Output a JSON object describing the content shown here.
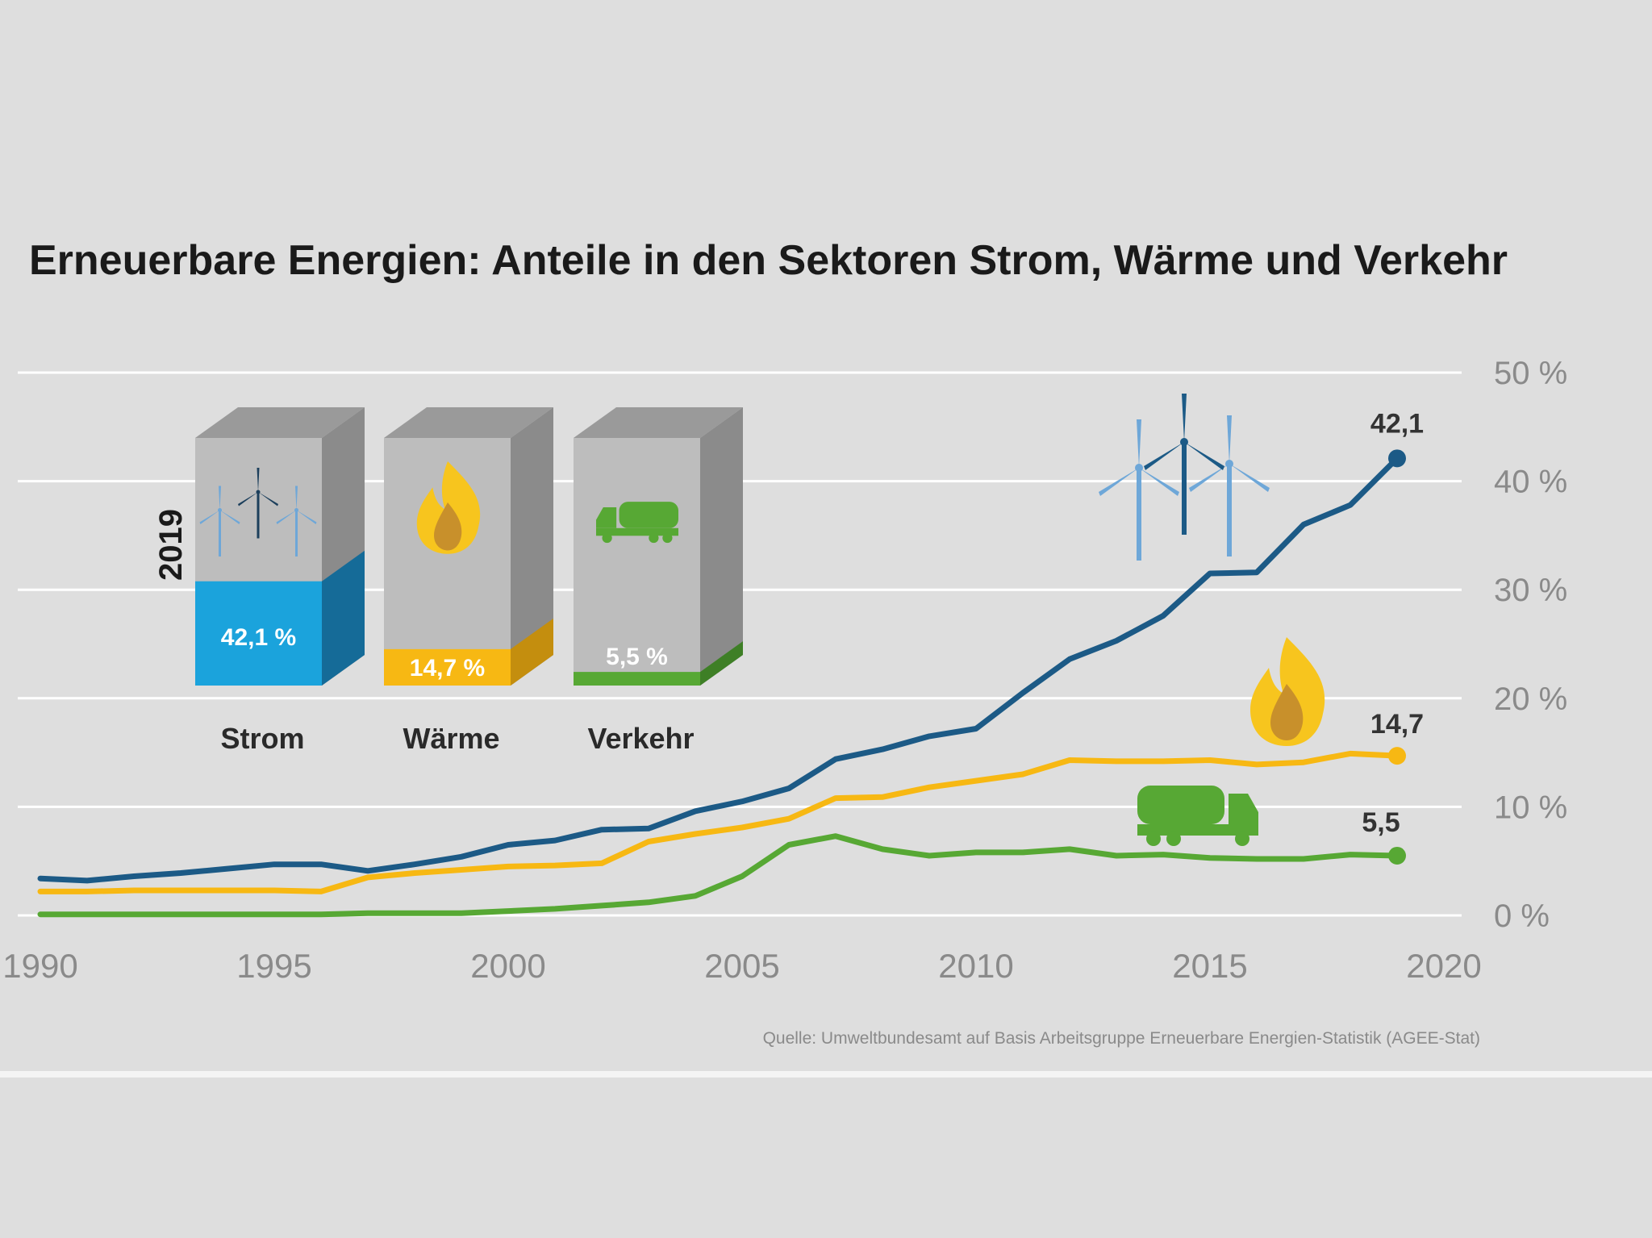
{
  "chart_data": {
    "type": "line",
    "title": "Erneuerbare Energien: Anteile in den Sektoren Strom, Wärme und Verkehr",
    "source": "Quelle: Umweltbundesamt auf Basis Arbeitsgruppe Erneuerbare Energien-Statistik (AGEE-Stat)",
    "x_ticks": [
      "1990",
      "1995",
      "2000",
      "2005",
      "2010",
      "2015",
      "2020"
    ],
    "y_ticks": [
      "0 %",
      "10 %",
      "20 %",
      "30 %",
      "40 %",
      "50 %"
    ],
    "xlim": [
      1990,
      2020
    ],
    "ylim": [
      0,
      50
    ],
    "grid": true,
    "series": [
      {
        "key": "strom",
        "color": "#1c5a86",
        "end_label": "42,1",
        "points": [
          [
            1990,
            3.4
          ],
          [
            1991,
            3.2
          ],
          [
            1992,
            3.6
          ],
          [
            1993,
            3.9
          ],
          [
            1994,
            4.3
          ],
          [
            1995,
            4.7
          ],
          [
            1996,
            4.7
          ],
          [
            1997,
            4.1
          ],
          [
            1998,
            4.7
          ],
          [
            1999,
            5.4
          ],
          [
            2000,
            6.5
          ],
          [
            2001,
            6.9
          ],
          [
            2002,
            7.9
          ],
          [
            2003,
            8.0
          ],
          [
            2004,
            9.6
          ],
          [
            2005,
            10.5
          ],
          [
            2006,
            11.7
          ],
          [
            2007,
            14.4
          ],
          [
            2008,
            15.3
          ],
          [
            2009,
            16.5
          ],
          [
            2010,
            17.2
          ],
          [
            2011,
            20.5
          ],
          [
            2012,
            23.6
          ],
          [
            2013,
            25.3
          ],
          [
            2014,
            27.6
          ],
          [
            2015,
            31.5
          ],
          [
            2016,
            31.6
          ],
          [
            2017,
            36.0
          ],
          [
            2018,
            37.8
          ],
          [
            2019,
            42.1
          ]
        ]
      },
      {
        "key": "waerme",
        "color": "#f7b813",
        "end_label": "14,7",
        "points": [
          [
            1990,
            2.2
          ],
          [
            1991,
            2.2
          ],
          [
            1992,
            2.3
          ],
          [
            1993,
            2.3
          ],
          [
            1994,
            2.3
          ],
          [
            1995,
            2.3
          ],
          [
            1996,
            2.2
          ],
          [
            1997,
            3.5
          ],
          [
            1998,
            3.9
          ],
          [
            1999,
            4.2
          ],
          [
            2000,
            4.5
          ],
          [
            2001,
            4.6
          ],
          [
            2002,
            4.8
          ],
          [
            2003,
            6.8
          ],
          [
            2004,
            7.5
          ],
          [
            2005,
            8.1
          ],
          [
            2006,
            8.9
          ],
          [
            2007,
            10.8
          ],
          [
            2008,
            10.9
          ],
          [
            2009,
            11.8
          ],
          [
            2010,
            12.4
          ],
          [
            2011,
            13.0
          ],
          [
            2012,
            14.3
          ],
          [
            2013,
            14.2
          ],
          [
            2014,
            14.2
          ],
          [
            2015,
            14.3
          ],
          [
            2016,
            13.9
          ],
          [
            2017,
            14.1
          ],
          [
            2018,
            14.9
          ],
          [
            2019,
            14.7
          ]
        ]
      },
      {
        "key": "verkehr",
        "color": "#57a834",
        "end_label": "5,5",
        "points": [
          [
            1990,
            0.1
          ],
          [
            1991,
            0.1
          ],
          [
            1992,
            0.1
          ],
          [
            1993,
            0.1
          ],
          [
            1994,
            0.1
          ],
          [
            1995,
            0.1
          ],
          [
            1996,
            0.1
          ],
          [
            1997,
            0.2
          ],
          [
            1998,
            0.2
          ],
          [
            1999,
            0.2
          ],
          [
            2000,
            0.4
          ],
          [
            2001,
            0.6
          ],
          [
            2002,
            0.9
          ],
          [
            2003,
            1.2
          ],
          [
            2004,
            1.8
          ],
          [
            2005,
            3.6
          ],
          [
            2006,
            6.5
          ],
          [
            2007,
            7.3
          ],
          [
            2008,
            6.1
          ],
          [
            2009,
            5.5
          ],
          [
            2010,
            5.8
          ],
          [
            2011,
            5.8
          ],
          [
            2012,
            6.1
          ],
          [
            2013,
            5.5
          ],
          [
            2014,
            5.6
          ],
          [
            2015,
            5.3
          ],
          [
            2016,
            5.2
          ],
          [
            2017,
            5.2
          ],
          [
            2018,
            5.6
          ],
          [
            2019,
            5.5
          ]
        ]
      }
    ],
    "inset": {
      "year": "2019",
      "bars": [
        {
          "key": "strom",
          "label": "Strom",
          "value": 42.1,
          "value_label": "42,1 %",
          "front": "#1ba3dc",
          "side": "#156b98",
          "icon": "wind-turbines-icon"
        },
        {
          "key": "waerme",
          "label": "Wärme",
          "value": 14.7,
          "value_label": "14,7 %",
          "front": "#f7b813",
          "side": "#c48e0e",
          "icon": "flame-icon"
        },
        {
          "key": "verkehr",
          "label": "Verkehr",
          "value": 5.5,
          "value_label": "5,5 %",
          "front": "#57a834",
          "side": "#3e7f26",
          "icon": "tanker-truck-icon"
        }
      ]
    }
  },
  "colors": {
    "background": "#dedede",
    "grid": "#ffffff",
    "axis_text": "#8a8a8a",
    "title_text": "#1a1a1a",
    "box_front": "#bdbdbd",
    "box_side": "#8b8b8b",
    "box_top": "#9a9a9a"
  }
}
